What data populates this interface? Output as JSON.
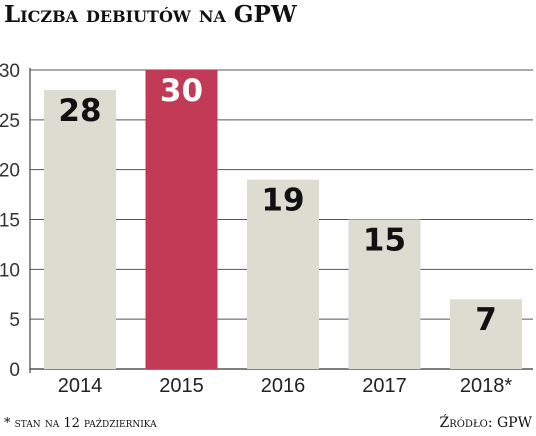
{
  "chart_data": {
    "type": "bar",
    "title": "Liczba debiutów na GPW",
    "categories": [
      "2014",
      "2015",
      "2016",
      "2017",
      "2018*"
    ],
    "values": [
      28,
      30,
      19,
      15,
      7
    ],
    "value_labels": [
      "28",
      "30",
      "19",
      "15",
      "7"
    ],
    "yticks": [
      0,
      5,
      10,
      15,
      20,
      25,
      30
    ],
    "ylim": [
      0,
      30
    ],
    "grid": true,
    "highlight_index": 1,
    "colors": {
      "bar": "#dcdcd0",
      "highlight": "#c23a55",
      "label_default": "#111111",
      "label_highlight": "#ffffff",
      "grid": "#555555"
    },
    "footnote": "* stan na 12 października",
    "source": "Źródło: GPW"
  }
}
